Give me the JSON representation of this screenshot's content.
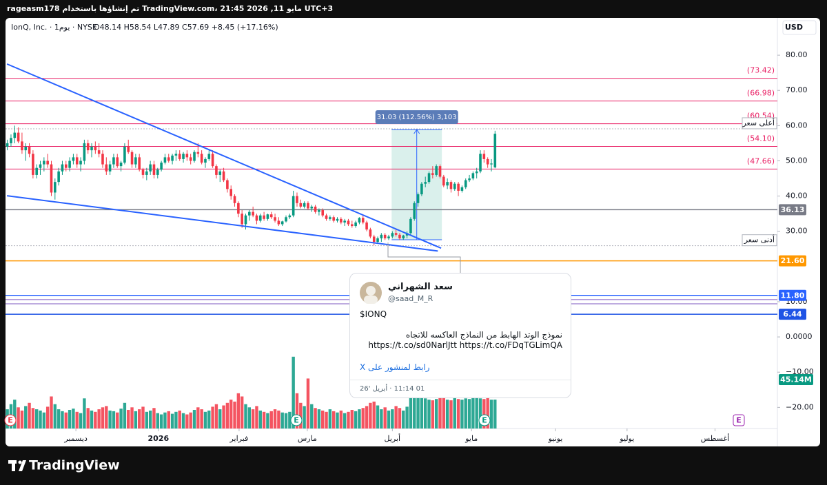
{
  "header": {
    "watermark": "rageasm178 تم إنشاؤها باستخدام TradingView.com، 21:45 2026 ,11 مايو UTC+3",
    "logo": "TradingView"
  },
  "chart_data": {
    "type": "candlestick",
    "symbol": "IonQ, Inc. · 1يوم · NYSE",
    "ohlc_text": "O48.14 H58.54 L47.89 C57.69 +8.45 (+17.16%)",
    "currency": "USD",
    "up_color": "#089981",
    "down_color": "#f23645",
    "xlim": [
      -2,
      210
    ],
    "xticks": [
      {
        "value": 18.7,
        "label": "ديسمبر"
      },
      {
        "value": 41.2,
        "label": "2026"
      },
      {
        "value": 63.2,
        "label": "فبراير"
      },
      {
        "value": 81.8,
        "label": "مارس"
      },
      {
        "value": 105,
        "label": "أبريل"
      },
      {
        "value": 126.6,
        "label": "مايو"
      },
      {
        "value": 149.5,
        "label": "يونيو"
      },
      {
        "value": 169,
        "label": "يوليو"
      },
      {
        "value": 193,
        "label": "أغسطس"
      }
    ],
    "ylim": [
      -26,
      89.8
    ],
    "yticks": [
      {
        "value": 80,
        "label": "80.00"
      },
      {
        "value": 70,
        "label": "70.00"
      },
      {
        "value": 60,
        "label": "60.00"
      },
      {
        "value": 50,
        "label": "50.00"
      },
      {
        "value": 40,
        "label": "40.00"
      },
      {
        "value": 30,
        "label": "30.00"
      },
      {
        "value": 10,
        "label": "10.00"
      },
      {
        "value": 0,
        "label": "0.0000"
      },
      {
        "value": -10,
        "label": "−10.00"
      },
      {
        "value": -20,
        "label": "−20.00"
      }
    ],
    "candles": {
      "open": [
        54,
        55,
        56.5,
        58,
        55.5,
        53,
        54,
        52,
        46,
        48,
        49,
        50,
        49,
        41,
        44,
        47,
        49,
        48,
        50,
        51,
        49,
        50,
        55,
        53,
        54,
        53,
        52,
        49,
        47,
        49,
        51,
        48.5,
        49.5,
        54,
        52.5,
        49,
        51,
        47.5,
        46,
        47,
        49,
        46,
        47.5,
        49.5,
        51,
        50,
        51.5,
        52,
        50.5,
        52,
        51,
        50,
        52.5,
        52,
        49.5,
        50.5,
        52,
        48.5,
        46,
        47,
        44.5,
        42,
        40,
        38,
        35,
        32,
        34.5,
        35.5,
        34.5,
        33,
        34.5,
        33.5,
        34.8,
        34,
        33,
        32,
        32.8,
        34,
        34.5,
        40,
        38,
        37,
        38,
        36.5,
        37,
        35.5,
        36,
        34.5,
        33.5,
        34,
        33,
        33.5,
        32.5,
        33,
        32,
        31.5,
        32.5,
        33.8,
        32.5,
        30.5,
        28.5,
        27,
        28,
        29,
        28,
        28.5,
        29.5,
        29,
        28,
        28.8,
        29.5,
        33.5,
        38,
        40.5,
        43.5,
        44,
        46.5,
        46,
        48.5,
        45.5,
        43,
        44,
        42,
        43.5,
        41.5,
        42.5,
        44.5,
        45,
        46.5,
        47,
        52,
        50.5,
        49,
        48.14
      ],
      "high": [
        56,
        57.5,
        60,
        59.5,
        58,
        55,
        55,
        53,
        49,
        50,
        51,
        52,
        50,
        45,
        48,
        50,
        50,
        51,
        52,
        52,
        51,
        56,
        56,
        55,
        55.5,
        55,
        53,
        51,
        50,
        52,
        52,
        50,
        55,
        56,
        53,
        52,
        52,
        48,
        48,
        50,
        50,
        48,
        50,
        52,
        52,
        52,
        53,
        53,
        52.5,
        53,
        52,
        53,
        55,
        53,
        51,
        53,
        53,
        49,
        47.5,
        48,
        45,
        43,
        40.5,
        38.5,
        36,
        35,
        36,
        37,
        35,
        35,
        35.5,
        35,
        35.5,
        35,
        34,
        33,
        34.5,
        35,
        41.5,
        41,
        39,
        38.5,
        38.5,
        37.5,
        37.5,
        36.5,
        36.5,
        35,
        34.5,
        34.5,
        34,
        34,
        33.5,
        33.5,
        33,
        33,
        34,
        34.5,
        33,
        31,
        29,
        28.5,
        29.5,
        29.5,
        29,
        30,
        30.5,
        29.5,
        29,
        30,
        34,
        38.5,
        41,
        44,
        45.5,
        47,
        48.5,
        49,
        49,
        46,
        45,
        44.5,
        44,
        44,
        43,
        45,
        46,
        47,
        48,
        53,
        53,
        51,
        50.5,
        58.54
      ],
      "low": [
        53,
        54,
        55,
        55,
        52,
        50,
        51,
        45,
        45,
        46,
        47,
        48,
        40,
        39,
        43,
        46,
        47,
        47,
        49,
        48,
        47,
        49,
        52,
        51,
        52,
        51,
        48,
        46,
        46,
        48,
        48,
        47,
        49,
        52,
        48,
        48,
        47,
        45,
        44.5,
        46,
        45,
        45,
        47,
        49,
        49.5,
        49,
        50,
        50,
        49.5,
        50,
        49,
        49.5,
        51,
        49,
        48,
        50,
        48,
        45,
        44,
        44,
        41,
        39,
        37,
        34,
        31,
        30.5,
        33,
        34,
        32,
        32.5,
        33,
        33,
        33.5,
        32.5,
        31.5,
        31.5,
        32.5,
        33.5,
        34,
        37,
        36.5,
        36.5,
        36,
        35.5,
        35,
        34.5,
        34,
        33,
        33,
        32.5,
        32.5,
        32,
        31.5,
        31.5,
        31,
        31,
        32,
        32,
        30,
        28,
        26,
        26.5,
        27,
        27.5,
        27.5,
        28,
        28.5,
        27.5,
        27.5,
        28,
        29,
        33,
        37,
        40,
        42.5,
        43.5,
        45,
        45.5,
        45,
        42.5,
        42,
        41,
        41.5,
        40,
        41,
        42,
        44,
        44.5,
        45,
        46.5,
        49.5,
        48,
        47,
        47.89
      ],
      "close": [
        55,
        56.5,
        58,
        55.5,
        53,
        54,
        52,
        46,
        48,
        49,
        50,
        49,
        41,
        44,
        47,
        49,
        48,
        50,
        51,
        49,
        50,
        55,
        53,
        54,
        53,
        52,
        49,
        47,
        49,
        51,
        48.5,
        49.5,
        54,
        52.5,
        49,
        51,
        47.5,
        46,
        47,
        49,
        46,
        47.5,
        49.5,
        51,
        50,
        51.5,
        52,
        50.5,
        52,
        51,
        50,
        52.5,
        52,
        49.5,
        50.5,
        52,
        48.5,
        46,
        47,
        44.5,
        42,
        40,
        38,
        35,
        32,
        34.5,
        35.5,
        34.5,
        33,
        34.5,
        33.5,
        34.8,
        34,
        33,
        32,
        32.8,
        34,
        34.5,
        40,
        38,
        37,
        38,
        36.5,
        37,
        35.5,
        36,
        34.5,
        33.5,
        34,
        33,
        33.5,
        32.5,
        33,
        32,
        31.5,
        32.5,
        33.8,
        32.5,
        30.5,
        28.5,
        27,
        28,
        29,
        28,
        28.5,
        29.5,
        29,
        28,
        28.8,
        29.5,
        33.5,
        38,
        40.5,
        43.5,
        44,
        46.5,
        46,
        48.5,
        45.5,
        43,
        44,
        42,
        43.5,
        41.5,
        42.5,
        44.5,
        45,
        46.5,
        47,
        52,
        50.5,
        49,
        49.24,
        57.69
      ]
    },
    "volume": [
      30,
      38,
      45,
      33,
      28,
      35,
      40,
      32,
      30,
      28,
      25,
      34,
      50,
      38,
      30,
      27,
      25,
      29,
      31,
      26,
      24,
      47,
      32,
      28,
      26,
      30,
      33,
      35,
      28,
      27,
      25,
      31,
      40,
      29,
      33,
      27,
      30,
      34,
      26,
      28,
      32,
      24,
      22,
      25,
      27,
      23,
      26,
      28,
      24,
      22,
      25,
      29,
      33,
      30,
      26,
      28,
      34,
      38,
      30,
      36,
      40,
      45,
      42,
      55,
      50,
      38,
      33,
      30,
      35,
      28,
      26,
      24,
      27,
      30,
      28,
      25,
      24,
      26,
      112,
      55,
      40,
      35,
      78,
      38,
      32,
      30,
      28,
      26,
      30,
      27,
      25,
      28,
      24,
      26,
      29,
      27,
      30,
      32,
      35,
      40,
      42,
      36,
      30,
      33,
      28,
      30,
      35,
      32,
      28,
      34,
      48,
      55,
      52,
      50,
      47,
      45,
      44,
      46,
      48,
      50,
      45,
      44,
      48,
      46,
      45,
      47,
      46,
      48,
      50,
      47,
      46,
      48,
      45,
      45.14
    ],
    "volume_lim": [
      0,
      115
    ],
    "volume_label": {
      "value": 45.14,
      "label": "45.14M"
    },
    "levels": [
      {
        "value": 73.42,
        "label": "(73.42)",
        "color": "#e91e63",
        "style": "text"
      },
      {
        "value": 66.98,
        "label": "(66.98)",
        "color": "#e91e63",
        "style": "text"
      },
      {
        "value": 60.54,
        "label": "(60.54)",
        "color": "#e91e63",
        "style": "text"
      },
      {
        "value": 54.1,
        "label": "(54.10)",
        "color": "#e91e63",
        "style": "text"
      },
      {
        "value": 47.66,
        "label": "(47.66)",
        "color": "#e91e63",
        "style": "text"
      },
      {
        "value": 36.13,
        "label": "36.13",
        "color": "#787b86",
        "style": "box"
      },
      {
        "value": 21.6,
        "label": "21.60",
        "color": "#ff9800",
        "style": "box"
      },
      {
        "value": 11.8,
        "label": "11.80",
        "color": "#2962ff",
        "style": "box"
      },
      {
        "value": 10.6,
        "color": "#7e57c2",
        "style": "line"
      },
      {
        "value": 9.4,
        "color": "#7e57c2",
        "style": "line"
      },
      {
        "value": 6.44,
        "label": "6.44",
        "color": "#1e53e5",
        "style": "box"
      }
    ],
    "extremes": [
      {
        "label": "أعلى سعر",
        "value": 59.1
      },
      {
        "label": "أدنى سعر",
        "value": 25.9
      }
    ],
    "trend_lines": [
      {
        "x": [
          -0.1,
          118.3
        ],
        "y": [
          77.5,
          25.2
        ],
        "color": "#2962ff"
      },
      {
        "x": [
          -0.1,
          117.4
        ],
        "y": [
          40.1,
          24.4
        ],
        "color": "#2962ff"
      }
    ],
    "measure": {
      "label": "31.03 (112.56%) 3,103",
      "x": [
        104.8,
        118.5
      ],
      "y": [
        27.6,
        58.9
      ]
    },
    "earnings_icon": "E"
  },
  "post": {
    "name": "سعد الشهراني",
    "handle": "@saad_M_R",
    "ticker": "$IONQ",
    "text": "نموذج الوتد الهابط  من النماذج العاكسه للاتجاه",
    "links": "https://t.co/sd0NarlJtt https://t.co/FDqTGLimQA",
    "link_label": "رابط لمنشور على X",
    "date": "01 11:14 · أبريل '26"
  }
}
